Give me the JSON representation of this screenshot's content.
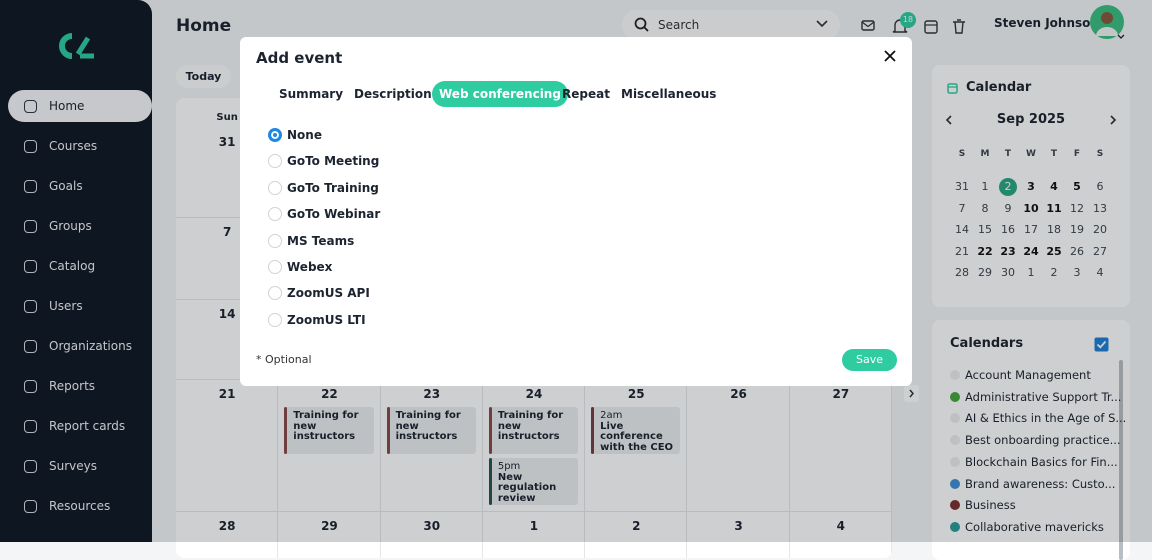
{
  "sidebar": {
    "nav": [
      "Home",
      "Courses",
      "Goals",
      "Groups",
      "Catalog",
      "Users",
      "Organizations",
      "Reports",
      "Report cards",
      "Surveys",
      "Resources"
    ]
  },
  "header": {
    "title": "Home",
    "search_placeholder": "Search",
    "notification_count": "18",
    "user_name": "Steven Johnson"
  },
  "toolbar": {
    "today_button": "Today"
  },
  "calendar_grid": {
    "weekdays": [
      "Sun"
    ],
    "weeks": [
      {
        "days": [
          {
            "date": "31"
          }
        ]
      },
      {
        "days": [
          {
            "date": "7"
          }
        ]
      },
      {
        "days": [
          {
            "date": "14"
          }
        ]
      },
      {
        "days": [
          {
            "date": "21"
          },
          {
            "date": "22",
            "events": [
              {
                "title": "Training for new instructors",
                "color": "#8a4a4a"
              }
            ]
          },
          {
            "date": "23",
            "events": [
              {
                "title": "Training for new instructors",
                "color": "#8a4a4a"
              }
            ]
          },
          {
            "date": "24",
            "events": [
              {
                "title": "Training for new instructors",
                "color": "#8a4a4a"
              },
              {
                "time": "5pm",
                "title": "New regulation review",
                "color": "#23574d"
              }
            ]
          },
          {
            "date": "25",
            "events": [
              {
                "time": "2am",
                "title": "Live conference with the CEO",
                "color": "#7a3e3e"
              }
            ]
          },
          {
            "date": "26"
          },
          {
            "date": "27"
          }
        ]
      },
      {
        "days": [
          {
            "date": "28"
          },
          {
            "date": "29"
          },
          {
            "date": "30"
          },
          {
            "date": "1"
          },
          {
            "date": "2"
          },
          {
            "date": "3"
          },
          {
            "date": "4"
          }
        ]
      }
    ]
  },
  "mini_calendar": {
    "title": "Calendar",
    "month": "Sep 2025",
    "weekdays": [
      "S",
      "M",
      "T",
      "W",
      "T",
      "F",
      "S"
    ],
    "rows": [
      [
        {
          "text": "31"
        },
        {
          "text": "1"
        },
        {
          "text": "2",
          "today": true
        },
        {
          "text": "3",
          "bold": true
        },
        {
          "text": "4",
          "bold": true
        },
        {
          "text": "5",
          "bold": true
        },
        {
          "text": "6"
        }
      ],
      [
        {
          "text": "7"
        },
        {
          "text": "8"
        },
        {
          "text": "9"
        },
        {
          "text": "10",
          "bold": true
        },
        {
          "text": "11",
          "bold": true
        },
        {
          "text": "12"
        },
        {
          "text": "13"
        }
      ],
      [
        {
          "text": "14"
        },
        {
          "text": "15"
        },
        {
          "text": "16"
        },
        {
          "text": "17"
        },
        {
          "text": "18"
        },
        {
          "text": "19"
        },
        {
          "text": "20"
        }
      ],
      [
        {
          "text": "21"
        },
        {
          "text": "22",
          "bold": true
        },
        {
          "text": "23",
          "bold": true
        },
        {
          "text": "24",
          "bold": true
        },
        {
          "text": "25",
          "bold": true
        },
        {
          "text": "26"
        },
        {
          "text": "27"
        }
      ],
      [
        {
          "text": "28"
        },
        {
          "text": "29"
        },
        {
          "text": "30"
        },
        {
          "text": "1"
        },
        {
          "text": "2"
        },
        {
          "text": "3"
        },
        {
          "text": "4"
        }
      ]
    ]
  },
  "calendars": {
    "title": "Calendars",
    "items": [
      {
        "name": "Account Management",
        "color": "#eceef0"
      },
      {
        "name": "Administrative Support Tr...",
        "color": "#45a83c"
      },
      {
        "name": "AI & Ethics in the Age of S...",
        "color": "#eceef0"
      },
      {
        "name": "Best onboarding practice...",
        "color": "#eceef0"
      },
      {
        "name": "Blockchain Basics for Fin...",
        "color": "#eceef0"
      },
      {
        "name": "Brand awareness: Custo...",
        "color": "#3f8fd6"
      },
      {
        "name": "Business",
        "color": "#7e3030"
      },
      {
        "name": "Collaborative mavericks",
        "color": "#2a9b9b"
      }
    ]
  },
  "modal": {
    "title": "Add event",
    "tabs": [
      "Summary",
      "Description",
      "Web conferencing",
      "Repeat",
      "Miscellaneous"
    ],
    "options": [
      "None",
      "GoTo Meeting",
      "GoTo Training",
      "GoTo Webinar",
      "MS Teams",
      "Webex",
      "ZoomUS API",
      "ZoomUS LTI"
    ],
    "note": "* Optional",
    "save_button": "Save"
  }
}
